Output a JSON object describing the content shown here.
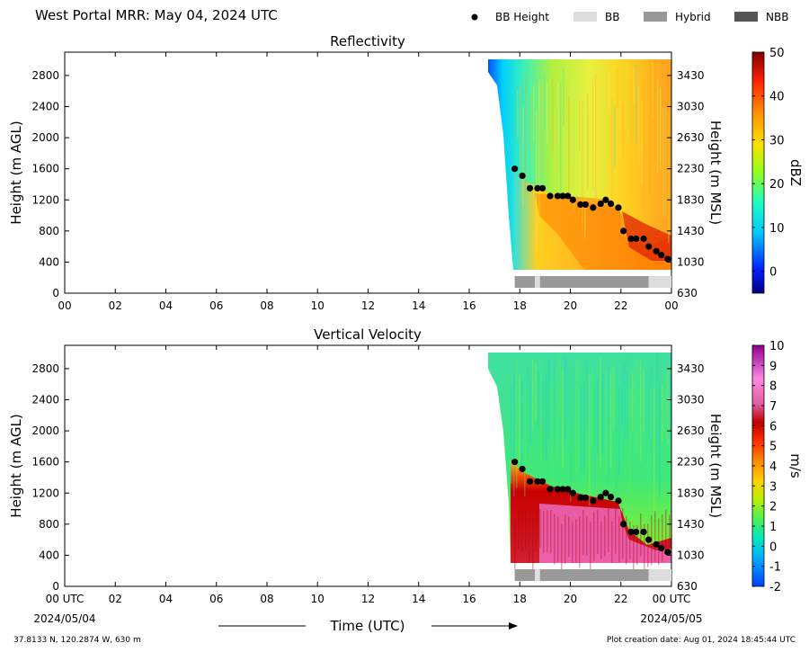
{
  "header": {
    "title": "West Portal MRR:  May 04, 2024 UTC"
  },
  "legend": {
    "items": [
      {
        "label": "BB Height",
        "kind": "dot",
        "color": "#000000"
      },
      {
        "label": "BB",
        "kind": "box",
        "color": "#dddddd"
      },
      {
        "label": "Hybrid",
        "kind": "box",
        "color": "#999999"
      },
      {
        "label": "NBB",
        "kind": "box",
        "color": "#555555"
      }
    ]
  },
  "footer": {
    "location": "37.8133 N, 120.2874 W, 630 m",
    "creation": "Plot creation date: Aug 01, 2024 18:45:44 UTC",
    "time_label": "Time (UTC)",
    "start_date": "2024/05/04",
    "end_date": "2024/05/05"
  },
  "chart_data": [
    {
      "type": "heatmap",
      "title": "Reflectivity",
      "ylabel": "Height (m AGL)",
      "y2label": "Height (m MSL)",
      "colorbar_label": "dBZ",
      "x_ticks": [
        "00",
        "02",
        "04",
        "06",
        "08",
        "10",
        "12",
        "14",
        "16",
        "18",
        "20",
        "22",
        "00"
      ],
      "xlim": [
        0,
        24
      ],
      "ylim": [
        0,
        3100
      ],
      "y_ticks": [
        0,
        400,
        800,
        1200,
        1600,
        2000,
        2400,
        2800
      ],
      "y2_ticks": [
        630,
        1030,
        1430,
        1830,
        2230,
        2630,
        3030,
        3430
      ],
      "colorbar_ticks": [
        0,
        10,
        20,
        30,
        40,
        50
      ],
      "colorbar_range": [
        -5,
        50
      ],
      "data_start_hour": 16.7,
      "bb_height": {
        "x": [
          17.8,
          18.1,
          18.4,
          18.7,
          18.9,
          19.2,
          19.5,
          19.7,
          19.9,
          20.1,
          20.4,
          20.6,
          20.9,
          21.2,
          21.4,
          21.6,
          21.9,
          22.1,
          22.4,
          22.6,
          22.9,
          23.1,
          23.4,
          23.6,
          23.85
        ],
        "y": [
          1600,
          1510,
          1350,
          1350,
          1350,
          1250,
          1250,
          1250,
          1250,
          1200,
          1140,
          1140,
          1100,
          1150,
          1200,
          1150,
          1100,
          800,
          700,
          700,
          700,
          600,
          540,
          490,
          440
        ]
      },
      "bb_type_bar": [
        {
          "start": 17.8,
          "end": 18.6,
          "type": "Hybrid"
        },
        {
          "start": 18.6,
          "end": 18.8,
          "type": "BB"
        },
        {
          "start": 18.8,
          "end": 23.1,
          "type": "Hybrid"
        },
        {
          "start": 23.1,
          "end": 24.0,
          "type": "BB"
        }
      ]
    },
    {
      "type": "heatmap",
      "title": "Vertical Velocity",
      "ylabel": "Height (m AGL)",
      "y2label": "Height (m MSL)",
      "colorbar_label": "m/s",
      "x_ticks": [
        "00 UTC",
        "02",
        "04",
        "06",
        "08",
        "10",
        "12",
        "14",
        "16",
        "18",
        "20",
        "22",
        "00 UTC"
      ],
      "xlim": [
        0,
        24
      ],
      "ylim": [
        0,
        3100
      ],
      "y_ticks": [
        0,
        400,
        800,
        1200,
        1600,
        2000,
        2400,
        2800
      ],
      "y2_ticks": [
        630,
        1030,
        1430,
        1830,
        2230,
        2630,
        3030,
        3430
      ],
      "colorbar_ticks": [
        -2,
        -1,
        0,
        1,
        2,
        3,
        4,
        5,
        6,
        7,
        8,
        9,
        10
      ],
      "colorbar_range": [
        -2,
        10
      ],
      "data_start_hour": 16.7,
      "bb_height": {
        "x": [
          17.8,
          18.1,
          18.4,
          18.7,
          18.9,
          19.2,
          19.5,
          19.7,
          19.9,
          20.1,
          20.4,
          20.6,
          20.9,
          21.2,
          21.4,
          21.6,
          21.9,
          22.1,
          22.4,
          22.6,
          22.9,
          23.1,
          23.4,
          23.6,
          23.85
        ],
        "y": [
          1600,
          1510,
          1350,
          1350,
          1350,
          1250,
          1250,
          1250,
          1250,
          1200,
          1140,
          1140,
          1100,
          1150,
          1200,
          1150,
          1100,
          800,
          700,
          700,
          700,
          600,
          540,
          490,
          440
        ]
      },
      "bb_type_bar": [
        {
          "start": 17.8,
          "end": 18.6,
          "type": "Hybrid"
        },
        {
          "start": 18.6,
          "end": 18.8,
          "type": "BB"
        },
        {
          "start": 18.8,
          "end": 23.1,
          "type": "Hybrid"
        },
        {
          "start": 23.1,
          "end": 24.0,
          "type": "BB"
        }
      ]
    }
  ]
}
